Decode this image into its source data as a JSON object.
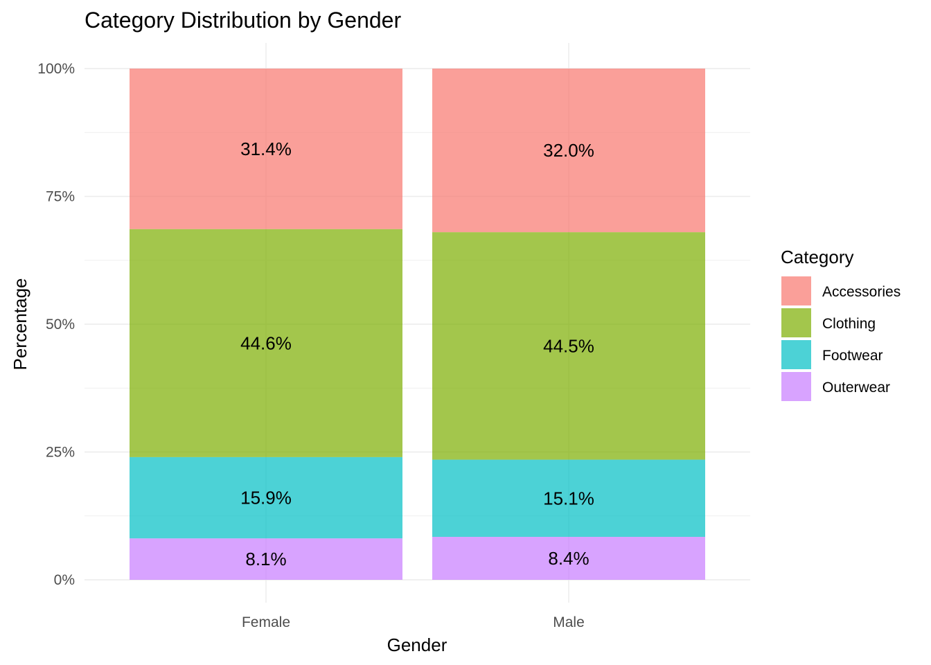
{
  "chart_data": {
    "type": "bar",
    "stacked": true,
    "normalized": true,
    "title": "Category Distribution by Gender",
    "xlabel": "Gender",
    "ylabel": "Percentage",
    "categories": [
      "Female",
      "Male"
    ],
    "ylim": [
      0,
      100
    ],
    "yticks": [
      0,
      25,
      50,
      75,
      100
    ],
    "ytick_labels": [
      "0%",
      "25%",
      "50%",
      "75%",
      "100%"
    ],
    "grid": true,
    "legend": {
      "title": "Category",
      "position": "right"
    },
    "series": [
      {
        "name": "Accessories",
        "color": "#F8766D",
        "values": [
          31.4,
          32.0
        ],
        "labels": [
          "31.4%",
          "32.0%"
        ]
      },
      {
        "name": "Clothing",
        "color": "#7CAE00",
        "values": [
          44.6,
          44.5
        ],
        "labels": [
          "44.6%",
          "44.5%"
        ]
      },
      {
        "name": "Footwear",
        "color": "#00BFC4",
        "values": [
          15.9,
          15.1
        ],
        "labels": [
          "15.9%",
          "15.1%"
        ]
      },
      {
        "name": "Outerwear",
        "color": "#C77CFF",
        "values": [
          8.1,
          8.4
        ],
        "labels": [
          "8.1%",
          "8.4%"
        ]
      }
    ]
  }
}
